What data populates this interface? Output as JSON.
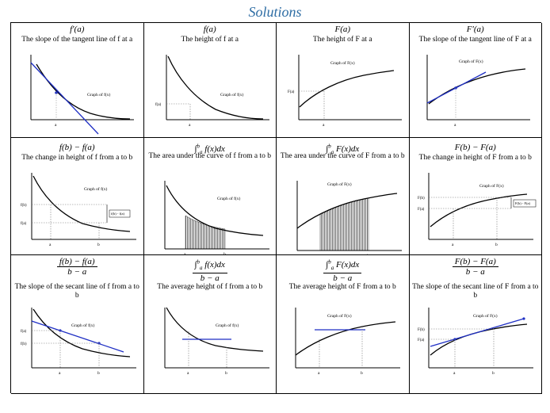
{
  "title": "Solutions",
  "cells": [
    {
      "header": "f′(a)",
      "desc": "The slope of the tangent line of f at a",
      "graph_label": "Graph of  f(x)",
      "ticks": [
        "a"
      ]
    },
    {
      "header": "f(a)",
      "desc": "The height of f at a",
      "graph_label": "Graph of  f(x)",
      "ticks": [
        "a"
      ],
      "ylabels": [
        "f(a)"
      ]
    },
    {
      "header": "F(a)",
      "desc": "The height of F at a",
      "graph_label": "Graph of  F(x)",
      "ticks": [
        "a"
      ],
      "ylabels": [
        "F(a)"
      ]
    },
    {
      "header": "F′(a)",
      "desc": "The slope of the tangent line of F at a",
      "graph_label": "Graph of  F(x)",
      "ticks": [
        "a"
      ]
    },
    {
      "header": "f(b) − f(a)",
      "desc": "The change in height of f from a to b",
      "graph_label": "Graph of  f(x)",
      "ticks": [
        "a",
        "b"
      ],
      "ylabels": [
        "f(a)",
        "f(b)"
      ],
      "bracket_label": "f(b) - f(a)"
    },
    {
      "header_int": "f(x)dx",
      "lower": "a",
      "upper": "b",
      "desc": "The area under the curve of f from a to b",
      "graph_label": "Graph of  f(x)",
      "ticks": [
        "a",
        "b"
      ]
    },
    {
      "header_int": "F(x)dx",
      "lower": "a",
      "upper": "b",
      "desc": "The area under the curve of F from a to b",
      "graph_label": "Graph of  F(x)",
      "ticks": [
        "a",
        "b"
      ]
    },
    {
      "header": "F(b) − F(a)",
      "desc": "The change in height of F from a to b",
      "graph_label": "Graph of  F(x)",
      "ticks": [
        "a",
        "b"
      ],
      "ylabels": [
        "F(a)",
        "F(b)"
      ],
      "bracket_label": "F(b) - F(a)"
    },
    {
      "num": "f(b) − f(a)",
      "den": "b − a",
      "desc": "The slope of the secant line of f from a to b",
      "graph_label": "Graph of  f(x)",
      "ticks": [
        "a",
        "b"
      ],
      "ylabels": [
        "f(a)",
        "f(b)"
      ]
    },
    {
      "num_int": "f(x)dx",
      "lower": "a",
      "upper": "b",
      "den": "b − a",
      "desc": "The average height of f from a to b",
      "graph_label": "Graph of  f(x)",
      "ticks": [
        "a",
        "b"
      ]
    },
    {
      "num_int": "F(x)dx",
      "lower": "a",
      "upper": "b",
      "den": "b − a",
      "desc": "The average height of F from a to b",
      "graph_label": "Graph of  F(x)",
      "ticks": [
        "a",
        "b"
      ]
    },
    {
      "num": "F(b) − F(a)",
      "den": "b − a",
      "desc": "The slope of the secant line of F from a to b",
      "graph_label": "Graph of  F(x)",
      "ticks": [
        "a",
        "b"
      ],
      "ylabels": [
        "F(a)",
        "F(b)"
      ]
    }
  ],
  "colors": {
    "title": "#2E6DA4",
    "line": "#1F2FC4",
    "curve": "#000000"
  }
}
